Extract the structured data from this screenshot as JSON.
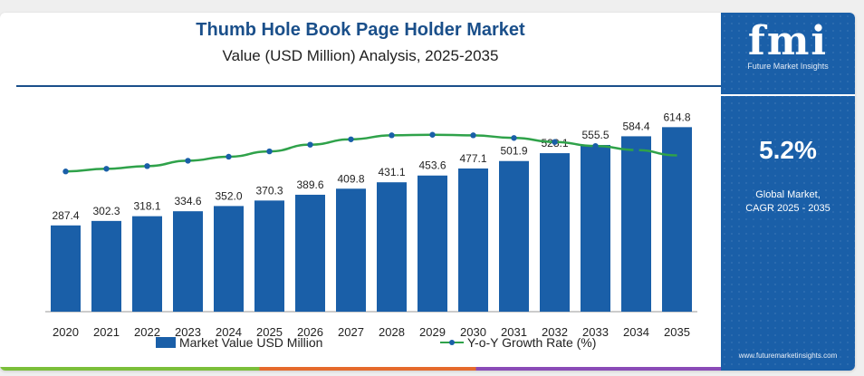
{
  "title": "Thumb Hole Book Page Holder Market",
  "subtitle": "Value (USD Million) Analysis, 2025-2035",
  "sidebar": {
    "logo_text": "fmi",
    "logo_sub": "Future Market Insights",
    "cagr_value": "5.2%",
    "cagr_label_line1": "Global Market,",
    "cagr_label_line2": "CAGR 2025 - 2035",
    "website": "www.futuremarketinsights.com"
  },
  "legend": {
    "bar_label": "Market Value USD Million",
    "line_label": "Y-o-Y Growth Rate (%)"
  },
  "colors": {
    "bar": "#1a5fa8",
    "line": "#2fa24a",
    "marker": "#1a5fa8",
    "sidebar": "#1a5fa8",
    "title": "#1a4f8a"
  },
  "chart_data": {
    "type": "bar",
    "categories": [
      "2020",
      "2021",
      "2022",
      "2023",
      "2024",
      "2025",
      "2026",
      "2027",
      "2028",
      "2029",
      "2030",
      "2031",
      "2032",
      "2033",
      "2034",
      "2035"
    ],
    "series": [
      {
        "name": "Market Value USD Million",
        "type": "bar",
        "values": [
          287.4,
          302.3,
          318.1,
          334.6,
          352.0,
          370.3,
          389.6,
          409.8,
          431.1,
          453.6,
          477.1,
          501.9,
          528.1,
          555.5,
          584.4,
          614.8
        ],
        "labels": [
          "287.4",
          "302.3",
          "318.1",
          "334.6",
          "352.0",
          "370.3",
          "389.6",
          "409.8",
          "431.1",
          "453.6",
          "477.1",
          "501.9",
          "528.1",
          "555.5",
          "584.4",
          "614.8"
        ]
      },
      {
        "name": "Y-o-Y Growth Rate (%)",
        "type": "line",
        "values": [
          4.5,
          4.6,
          4.7,
          4.9,
          5.05,
          5.25,
          5.5,
          5.7,
          5.85,
          5.87,
          5.85,
          5.75,
          5.6,
          5.45,
          5.3,
          5.1
        ]
      }
    ],
    "legend_position": "bottom",
    "grid": false
  }
}
